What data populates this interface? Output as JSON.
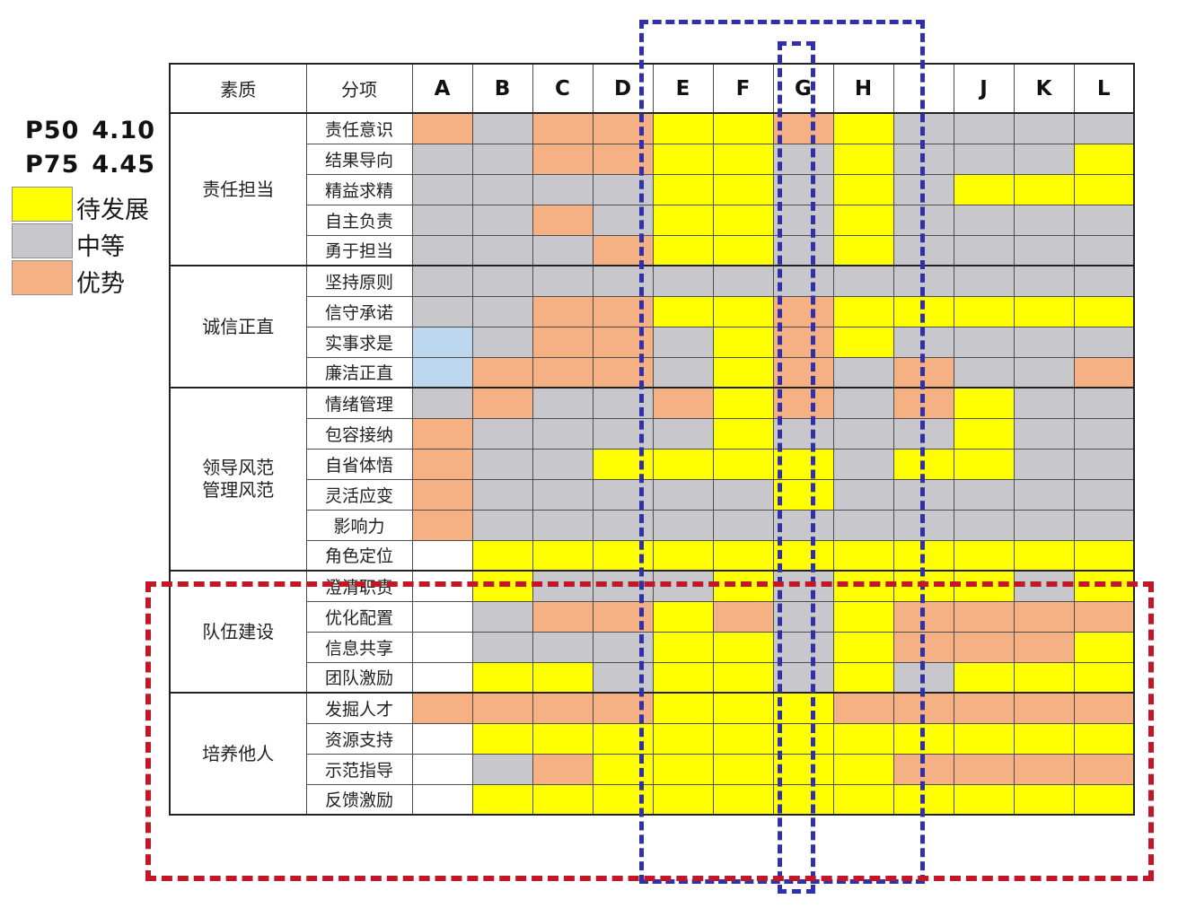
{
  "colors": {
    "y": "#ffff00",
    "g": "#c8c8cc",
    "o": "#f5b183",
    "b": "#bdd7ee",
    "w": "#ffffff",
    "grid": "#4d4d4d",
    "blue_dash": "#3030a8",
    "red_dash": "#c01828"
  },
  "legend": {
    "p50_label": "P50",
    "p50_value": "4.10",
    "p75_label": "P75",
    "p75_value": "4.45",
    "items": [
      {
        "label": "待发展",
        "code": "y"
      },
      {
        "label": "中等",
        "code": "g"
      },
      {
        "label": "优势",
        "code": "o"
      }
    ]
  },
  "chart_data": {
    "type": "heatmap",
    "header": {
      "quality": "素质",
      "subitem": "分项"
    },
    "col_labels": [
      "A",
      "B",
      "C",
      "D",
      "E",
      "F",
      "G",
      "H",
      "",
      "J",
      "K",
      "L"
    ],
    "cell_code_meaning": {
      "y": "待发展",
      "g": "中等",
      "o": "优势",
      "b": "light-blue",
      "w": "blank"
    },
    "groups": [
      {
        "quality": [
          "责任担当"
        ],
        "rows": [
          {
            "label": "责任意识",
            "cells": [
              "o",
              "g",
              "o",
              "o",
              "y",
              "y",
              "o",
              "y",
              "g",
              "g",
              "g",
              "g"
            ]
          },
          {
            "label": "结果导向",
            "cells": [
              "g",
              "g",
              "o",
              "o",
              "y",
              "y",
              "g",
              "y",
              "g",
              "g",
              "g",
              "y"
            ]
          },
          {
            "label": "精益求精",
            "cells": [
              "g",
              "g",
              "g",
              "g",
              "y",
              "y",
              "g",
              "y",
              "g",
              "y",
              "y",
              "y"
            ]
          },
          {
            "label": "自主负责",
            "cells": [
              "g",
              "g",
              "o",
              "g",
              "y",
              "y",
              "g",
              "y",
              "g",
              "g",
              "g",
              "g"
            ]
          },
          {
            "label": "勇于担当",
            "cells": [
              "g",
              "g",
              "g",
              "o",
              "y",
              "y",
              "g",
              "y",
              "g",
              "g",
              "g",
              "g"
            ]
          }
        ]
      },
      {
        "quality": [
          "诚信正直"
        ],
        "rows": [
          {
            "label": "坚持原则",
            "cells": [
              "g",
              "g",
              "g",
              "g",
              "g",
              "g",
              "g",
              "g",
              "g",
              "g",
              "g",
              "g"
            ]
          },
          {
            "label": "信守承诺",
            "cells": [
              "g",
              "g",
              "o",
              "o",
              "y",
              "y",
              "o",
              "y",
              "y",
              "y",
              "y",
              "y"
            ]
          },
          {
            "label": "实事求是",
            "cells": [
              "b",
              "g",
              "o",
              "o",
              "g",
              "y",
              "o",
              "y",
              "g",
              "g",
              "g",
              "g"
            ]
          },
          {
            "label": "廉洁正直",
            "cells": [
              "b",
              "o",
              "o",
              "o",
              "g",
              "y",
              "o",
              "g",
              "o",
              "g",
              "g",
              "o"
            ]
          }
        ]
      },
      {
        "quality": [
          "领导风范",
          "管理风范"
        ],
        "rows": [
          {
            "label": "情绪管理",
            "cells": [
              "g",
              "o",
              "g",
              "g",
              "o",
              "y",
              "o",
              "g",
              "o",
              "y",
              "g",
              "g"
            ]
          },
          {
            "label": "包容接纳",
            "cells": [
              "o",
              "g",
              "g",
              "g",
              "g",
              "y",
              "g",
              "g",
              "g",
              "y",
              "g",
              "g"
            ]
          },
          {
            "label": "自省体悟",
            "cells": [
              "o",
              "g",
              "g",
              "y",
              "y",
              "y",
              "y",
              "g",
              "y",
              "y",
              "g",
              "g"
            ]
          },
          {
            "label": "灵活应变",
            "cells": [
              "o",
              "g",
              "g",
              "g",
              "g",
              "g",
              "y",
              "g",
              "g",
              "g",
              "g",
              "g"
            ]
          },
          {
            "label": "影响力",
            "cells": [
              "o",
              "g",
              "g",
              "g",
              "g",
              "g",
              "g",
              "g",
              "g",
              "g",
              "g",
              "g"
            ]
          },
          {
            "label": "角色定位",
            "cells": [
              "w",
              "y",
              "y",
              "y",
              "y",
              "y",
              "y",
              "y",
              "y",
              "y",
              "y",
              "y"
            ]
          }
        ]
      },
      {
        "quality": [
          "队伍建设"
        ],
        "rows": [
          {
            "label": "澄清职责",
            "cells": [
              "w",
              "y",
              "g",
              "g",
              "g",
              "y",
              "g",
              "y",
              "y",
              "y",
              "g",
              "y"
            ]
          },
          {
            "label": "优化配置",
            "cells": [
              "w",
              "g",
              "o",
              "o",
              "y",
              "o",
              "g",
              "y",
              "o",
              "o",
              "o",
              "o"
            ]
          },
          {
            "label": "信息共享",
            "cells": [
              "w",
              "g",
              "g",
              "g",
              "y",
              "y",
              "g",
              "y",
              "o",
              "o",
              "o",
              "y"
            ]
          },
          {
            "label": "团队激励",
            "cells": [
              "w",
              "y",
              "y",
              "g",
              "y",
              "y",
              "g",
              "y",
              "g",
              "y",
              "y",
              "y"
            ]
          }
        ]
      },
      {
        "quality": [
          "培养他人"
        ],
        "rows": [
          {
            "label": "发掘人才",
            "cells": [
              "o",
              "o",
              "o",
              "o",
              "y",
              "y",
              "y",
              "o",
              "o",
              "o",
              "o",
              "o"
            ]
          },
          {
            "label": "资源支持",
            "cells": [
              "w",
              "y",
              "y",
              "y",
              "y",
              "y",
              "y",
              "y",
              "y",
              "y",
              "y",
              "y"
            ]
          },
          {
            "label": "示范指导",
            "cells": [
              "w",
              "g",
              "o",
              "y",
              "y",
              "y",
              "y",
              "y",
              "o",
              "o",
              "o",
              "o"
            ]
          },
          {
            "label": "反馈激励",
            "cells": [
              "w",
              "y",
              "y",
              "y",
              "y",
              "y",
              "y",
              "y",
              "y",
              "y",
              "y",
              "y"
            ]
          }
        ]
      }
    ],
    "annotations": {
      "blue_box_large": "dashed blue outline around columns E–I",
      "blue_box_small": "dashed blue outline around column G",
      "red_box": "dashed red outline around rows 角色定位–反馈激励"
    }
  }
}
